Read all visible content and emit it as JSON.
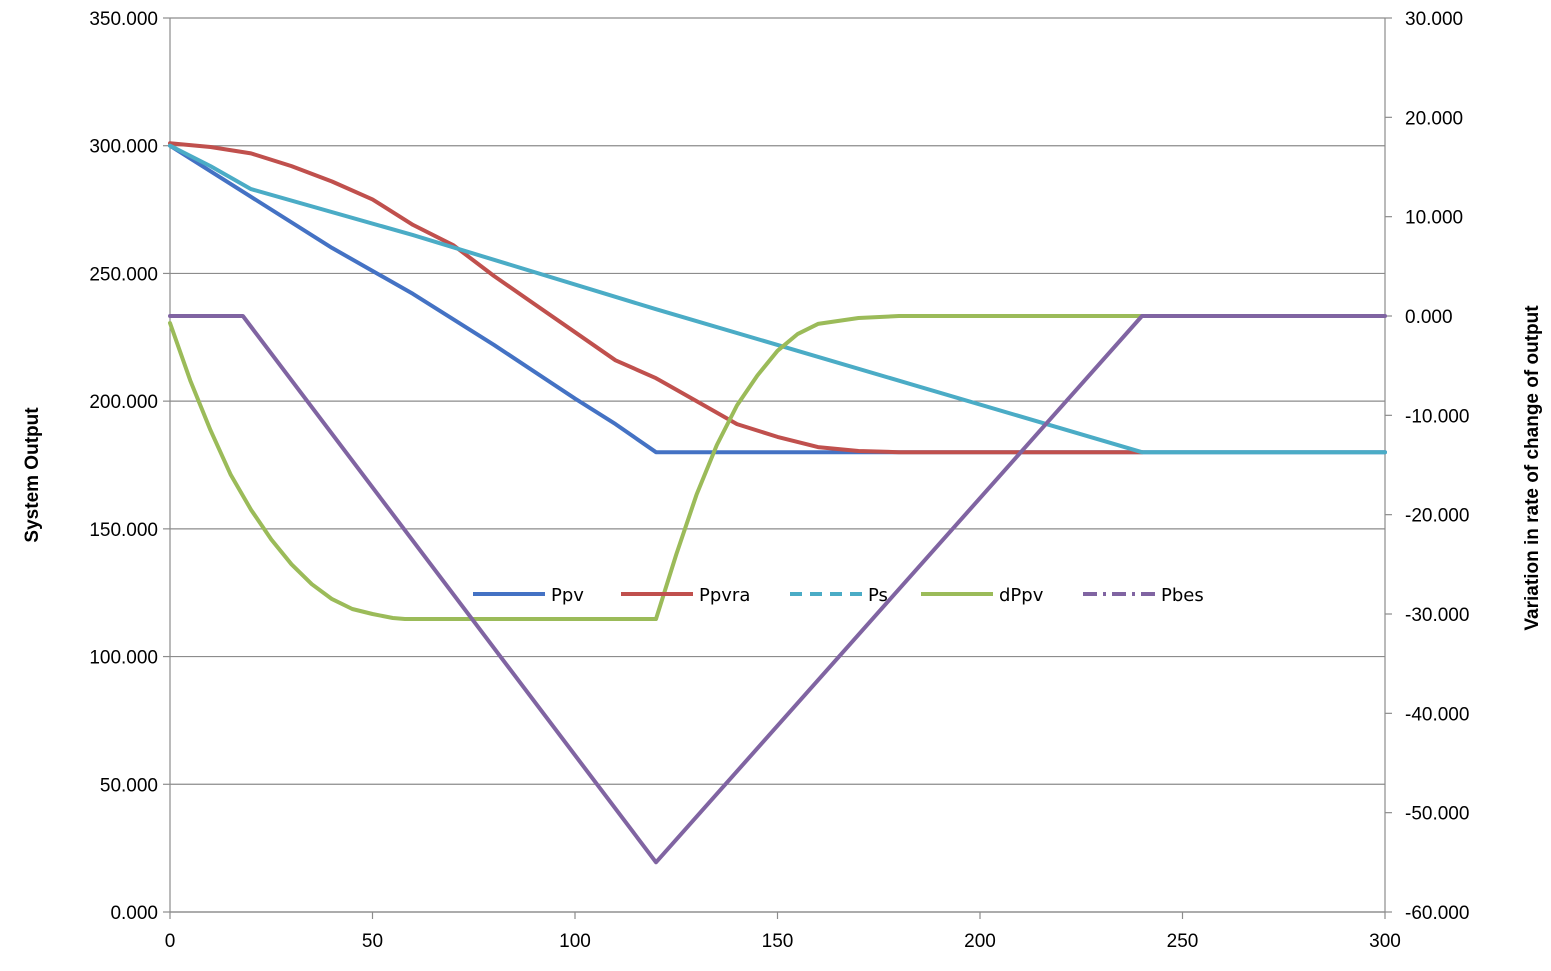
{
  "chart_data": {
    "type": "line",
    "title": "",
    "xlabel": "",
    "ylabel": "System Output",
    "y2label": "Variation in rate of change of output",
    "xlim": [
      0,
      300
    ],
    "ylim": [
      0,
      350
    ],
    "y2lim": [
      -60,
      30
    ],
    "x_ticks": [
      "0",
      "50",
      "100",
      "150",
      "200",
      "250",
      "300"
    ],
    "y_ticks": [
      "0.000",
      "50.000",
      "100.000",
      "150.000",
      "200.000",
      "250.000",
      "300.000",
      "350.000"
    ],
    "y2_ticks": [
      "-60.000",
      "-50.000",
      "-40.000",
      "-30.000",
      "-20.000",
      "-10.000",
      "0.000",
      "10.000",
      "20.000",
      "30.000"
    ],
    "grid": "horizontal",
    "legend_position": "center",
    "series": [
      {
        "name": "Ppv",
        "axis": "left",
        "color": "#4472C4",
        "dash": "solid",
        "points": [
          [
            0,
            300
          ],
          [
            20,
            280
          ],
          [
            40,
            260
          ],
          [
            60,
            242
          ],
          [
            80,
            222
          ],
          [
            100,
            201
          ],
          [
            110,
            191
          ],
          [
            120,
            180
          ],
          [
            180,
            180
          ],
          [
            240,
            180
          ],
          [
            300,
            180
          ]
        ]
      },
      {
        "name": "Ppvra",
        "axis": "left",
        "color": "#C0504D",
        "dash": "solid",
        "points": [
          [
            0,
            301
          ],
          [
            10,
            299.5
          ],
          [
            20,
            297
          ],
          [
            30,
            292
          ],
          [
            40,
            286
          ],
          [
            50,
            279
          ],
          [
            60,
            269
          ],
          [
            70,
            261
          ],
          [
            80,
            249
          ],
          [
            90,
            238
          ],
          [
            100,
            227
          ],
          [
            110,
            216
          ],
          [
            120,
            209
          ],
          [
            130,
            200
          ],
          [
            140,
            191
          ],
          [
            150,
            186
          ],
          [
            160,
            182
          ],
          [
            170,
            180.5
          ],
          [
            180,
            180
          ],
          [
            240,
            180
          ]
        ]
      },
      {
        "name": "Ps",
        "axis": "left",
        "color": "#4BACC6",
        "dash": "dash",
        "points": [
          [
            0,
            300
          ],
          [
            10,
            292
          ],
          [
            20,
            283
          ],
          [
            60,
            265
          ],
          [
            120,
            236
          ],
          [
            180,
            208
          ],
          [
            240,
            180
          ],
          [
            300,
            180
          ]
        ]
      },
      {
        "name": "dPpv",
        "axis": "right",
        "color": "#9BBB59",
        "dash": "solid",
        "points": [
          [
            0,
            -0.7
          ],
          [
            5,
            -6.5
          ],
          [
            10,
            -11.5
          ],
          [
            15,
            -16
          ],
          [
            20,
            -19.5
          ],
          [
            25,
            -22.5
          ],
          [
            30,
            -25
          ],
          [
            35,
            -27
          ],
          [
            40,
            -28.5
          ],
          [
            45,
            -29.5
          ],
          [
            50,
            -30
          ],
          [
            55,
            -30.4
          ],
          [
            58,
            -30.5
          ],
          [
            120,
            -30.5
          ],
          [
            125,
            -24
          ],
          [
            130,
            -18
          ],
          [
            135,
            -13
          ],
          [
            140,
            -9
          ],
          [
            145,
            -6
          ],
          [
            150,
            -3.5
          ],
          [
            155,
            -1.8
          ],
          [
            160,
            -0.8
          ],
          [
            170,
            -0.2
          ],
          [
            180,
            0
          ],
          [
            240,
            0
          ]
        ]
      },
      {
        "name": "Pbes",
        "axis": "right",
        "color": "#8064A2",
        "dash": "dashdot",
        "points": [
          [
            0,
            0
          ],
          [
            18,
            0
          ],
          [
            120,
            -55
          ],
          [
            240,
            0
          ],
          [
            300,
            0
          ]
        ]
      }
    ]
  }
}
